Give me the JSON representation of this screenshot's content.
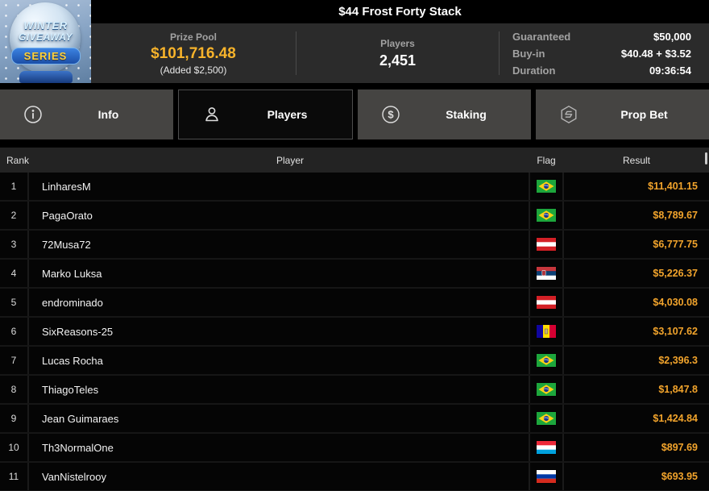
{
  "logo": {
    "line1": "WINTER",
    "line2": "GIVEAWAY",
    "banner": "SERIES"
  },
  "title": "$44 Frost Forty Stack",
  "header": {
    "prize_pool": {
      "label": "Prize Pool",
      "amount": "$101,716.48",
      "added": "(Added $2,500)"
    },
    "players": {
      "label": "Players",
      "value": "2,451"
    },
    "details": [
      {
        "label": "Guaranteed",
        "value": "$50,000"
      },
      {
        "label": "Buy-in",
        "value": "$40.48 + $3.52"
      },
      {
        "label": "Duration",
        "value": "09:36:54"
      }
    ]
  },
  "tabs": [
    {
      "label": "Info",
      "icon": "info",
      "active": false
    },
    {
      "label": "Players",
      "icon": "person",
      "active": true
    },
    {
      "label": "Staking",
      "icon": "dollar",
      "active": false
    },
    {
      "label": "Prop Bet",
      "icon": "propbet",
      "active": false
    }
  ],
  "table": {
    "columns": [
      "Rank",
      "Player",
      "Flag",
      "Result"
    ],
    "rows": [
      {
        "rank": "1",
        "player": "LinharesM",
        "flag": "brazil",
        "result": "$11,401.15"
      },
      {
        "rank": "2",
        "player": "PagaOrato",
        "flag": "brazil",
        "result": "$8,789.67"
      },
      {
        "rank": "3",
        "player": "72Musa72",
        "flag": "austria",
        "result": "$6,777.75"
      },
      {
        "rank": "4",
        "player": "Marko Luksa",
        "flag": "serbia",
        "result": "$5,226.37"
      },
      {
        "rank": "5",
        "player": "endrominado",
        "flag": "austria",
        "result": "$4,030.08"
      },
      {
        "rank": "6",
        "player": "SixReasons-25",
        "flag": "andorra",
        "result": "$3,107.62"
      },
      {
        "rank": "7",
        "player": "Lucas Rocha",
        "flag": "brazil",
        "result": "$2,396.3"
      },
      {
        "rank": "8",
        "player": "ThiagoTeles",
        "flag": "brazil",
        "result": "$1,847.8"
      },
      {
        "rank": "9",
        "player": "Jean Guimaraes",
        "flag": "brazil",
        "result": "$1,424.84"
      },
      {
        "rank": "10",
        "player": "Th3NormalOne",
        "flag": "luxembourg",
        "result": "$897.69"
      },
      {
        "rank": "11",
        "player": "VanNistelrooy",
        "flag": "russia",
        "result": "$693.95"
      }
    ]
  },
  "colors": {
    "gold_prize": "#f7b32b",
    "gold_result": "#f2a42c",
    "header_band": "#2b2b2b",
    "tab_inactive": "#454442"
  }
}
